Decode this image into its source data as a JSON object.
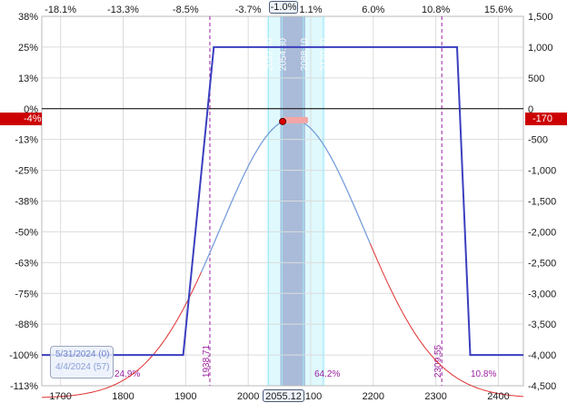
{
  "chart_data": {
    "type": "line",
    "x_axis": {
      "range": [
        1670,
        2440
      ],
      "tick_labels": [
        "1700",
        "1800",
        "1900",
        "2000",
        "2100",
        "2200",
        "2300",
        "2400"
      ]
    },
    "top_axis": {
      "tick_labels": [
        "-18.1%",
        "-13.3%",
        "-8.5%",
        "-3.7%",
        "1.1%",
        "6.0%",
        "10.8%",
        "15.6%"
      ],
      "tick_x": [
        1700,
        1800,
        1900,
        2000,
        2100,
        2200,
        2300,
        2400
      ],
      "current": "-1.0%"
    },
    "left_axis": {
      "tick_labels": [
        "38%",
        "25%",
        "13%",
        "0%",
        "-13%",
        "-25%",
        "-38%",
        "-50%",
        "-63%",
        "-75%",
        "-88%",
        "-100%",
        "-113%"
      ]
    },
    "right_axis": {
      "range": [
        -4500,
        1500
      ],
      "tick_values": [
        1500,
        1000,
        500,
        0,
        -500,
        -1000,
        -1500,
        -2000,
        -2500,
        -3000,
        -3500,
        -4000,
        -4500
      ],
      "tick_labels": [
        "1,500",
        "1,000",
        "500",
        "0",
        "-500",
        "-1,000",
        "-1,500",
        "-2,000",
        "-2,500",
        "-3,000",
        "-3,500",
        "-4,000",
        "-4,500"
      ]
    },
    "series": [
      {
        "key": "expiration",
        "color": "#3b3fbf",
        "x": [
          1670,
          1896,
          1945,
          2334,
          2355,
          2440
        ],
        "y": [
          -4000,
          -4000,
          1000,
          1000,
          -4000,
          -4000
        ]
      },
      {
        "key": "today",
        "color": "#e03030",
        "center": 2070,
        "sigma": 115,
        "peak": -170,
        "base": -4700
      }
    ],
    "breakevens": [
      {
        "x": 1938.71,
        "label": "1938.71",
        "pct": "24.9%"
      },
      {
        "x": 2309.55,
        "label": "2309.55",
        "pct": "10.8%"
      }
    ],
    "short_strike_lines": [
      {
        "x": 2032.4,
        "label": "2032.40"
      },
      {
        "x": 2054.3,
        "label": "2054.30"
      },
      {
        "x": 2088.1,
        "label": "2088.10"
      },
      {
        "x": 2120.0,
        "label": "2120.00"
      }
    ],
    "prob_label": "64.2%",
    "current_price": "2055.12",
    "current_pnl_left": "-4%",
    "current_pnl_right": "-170",
    "legend": {
      "line1": "5/31/2024 (0)",
      "line2": "4/4/2024 (57)"
    },
    "colors": {
      "background": "#ffffff",
      "grid": "#dcdcdc",
      "expiration_line": "#3b3fbf",
      "today_line": "#e03030",
      "today_near": "#6fa3e6",
      "breakeven_line": "#9b1fa0",
      "band_outer": "#dff9fd",
      "band_inner": "#aabbd9",
      "zero_line": "#000000",
      "badge": "#cc0000"
    }
  }
}
